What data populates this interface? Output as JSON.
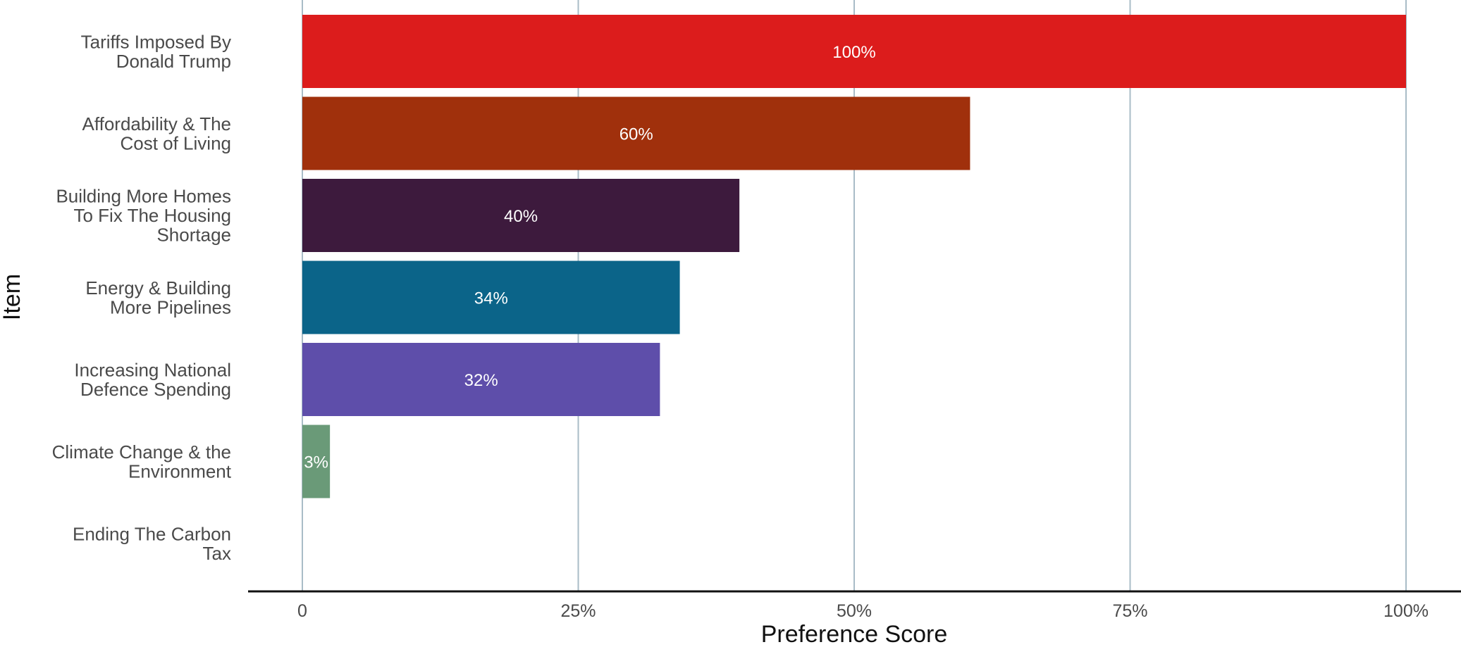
{
  "chart_data": {
    "type": "bar",
    "orientation": "horizontal",
    "categories": [
      [
        "Tariffs Imposed By",
        "Donald Trump"
      ],
      [
        "Affordability & The",
        "Cost of Living"
      ],
      [
        "Building More Homes",
        "To Fix The Housing",
        "Shortage"
      ],
      [
        "Energy & Building",
        "More Pipelines"
      ],
      [
        "Increasing National",
        "Defence Spending"
      ],
      [
        "Climate Change & the",
        "Environment"
      ],
      [
        "Ending The Carbon",
        "Tax"
      ]
    ],
    "values": [
      100,
      60.5,
      39.6,
      34.2,
      32.4,
      2.5,
      0
    ],
    "data_labels": [
      "100%",
      "60%",
      "40%",
      "34%",
      "32%",
      "3%",
      ""
    ],
    "colors": [
      "#dc1c1c",
      "#a0300c",
      "#3d1a3d",
      "#0b6489",
      "#5e4eaa",
      "#6a9a78",
      "#999999"
    ],
    "xlim": [
      0,
      100
    ],
    "xticks": [
      0,
      25,
      50,
      75,
      100
    ],
    "xtick_labels": [
      "0",
      "25%",
      "50%",
      "75%",
      "100%"
    ],
    "xlabel": "Preference Score",
    "ylabel": "Item",
    "grid": "vertical",
    "legend": "none"
  }
}
